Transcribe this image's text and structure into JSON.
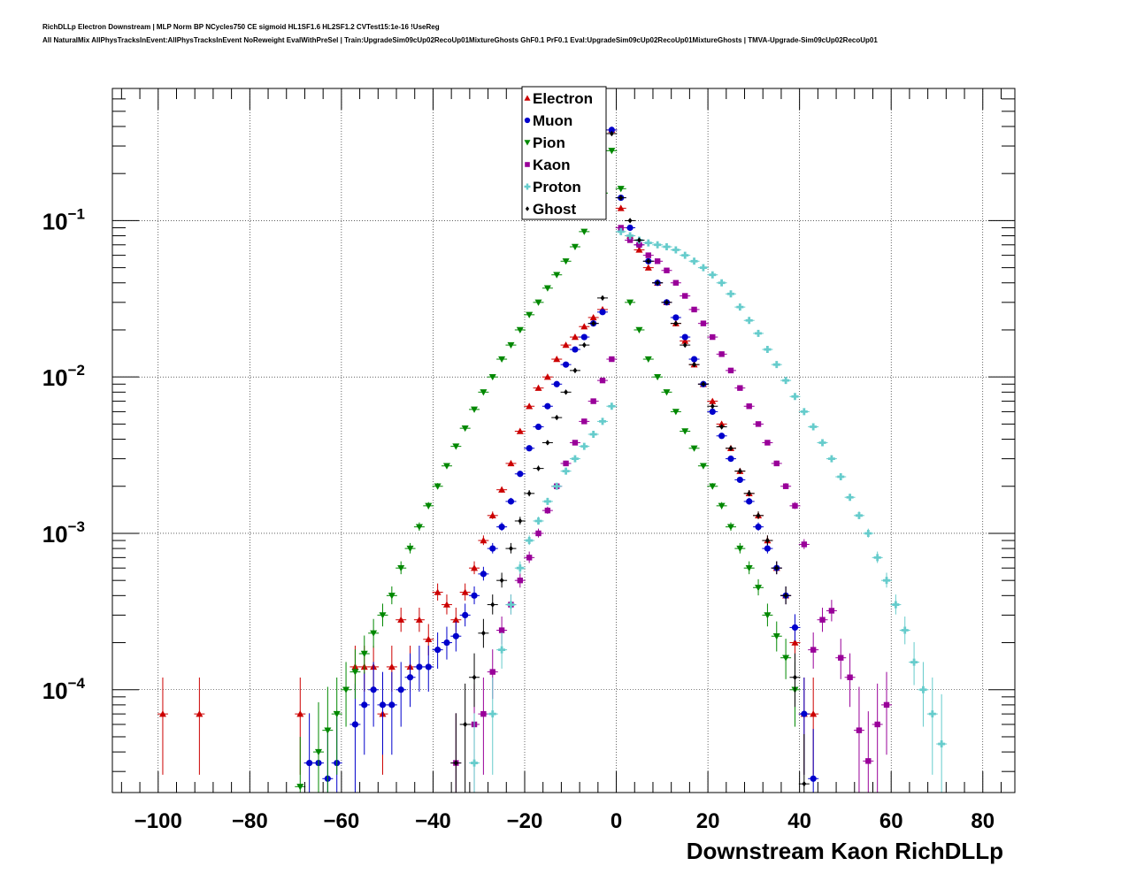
{
  "header": {
    "title_line1": "RichDLLp Electron Downstream | MLP Norm BP NCycles750 CE sigmoid HL1SF1.6 HL2SF1.2 CVTest15:1e-16 !UseReg",
    "title_line2": "All NaturalMix AllPhysTracksInEvent:AllPhysTracksInEvent NoReweight EvalWithPreSel | Train:UpgradeSim09cUp02RecoUp01MixtureGhosts GhF0.1 PrF0.1 Eval:UpgradeSim09cUp02RecoUp01MixtureGhosts | TMVA-Upgrade-Sim09cUp02RecoUp01"
  },
  "chart_data": {
    "type": "scatter",
    "xlabel": "Downstream Kaon RichDLLp",
    "x_ticks": [
      -100,
      -80,
      -60,
      -40,
      -20,
      0,
      20,
      40,
      60,
      80
    ],
    "x_tick_labels": [
      "−100",
      "−80",
      "−60",
      "−40",
      "−20",
      "0",
      "20",
      "40",
      "60",
      "80"
    ],
    "xlim": [
      -110,
      87
    ],
    "ylim": [
      2.2e-05,
      0.7
    ],
    "yscale": "log",
    "y_decades": [
      -4,
      -3,
      -2,
      -1
    ],
    "y_tick_base": "10",
    "grid": true,
    "legend_position": "top-center",
    "series": [
      {
        "name": "Electron",
        "color": "#cc0000",
        "marker": "triangle-up",
        "x": [
          -99,
          -91,
          -69,
          -57,
          -55,
          -53,
          -51,
          -49,
          -47,
          -45,
          -43,
          -41,
          -39,
          -37,
          -35,
          -33,
          -31,
          -29,
          -27,
          -25,
          -23,
          -21,
          -19,
          -17,
          -15,
          -13,
          -11,
          -9,
          -7,
          -5,
          -3,
          -1,
          1,
          3,
          5,
          7,
          9,
          11,
          13,
          15,
          17,
          19,
          21,
          23,
          25,
          27,
          29,
          31,
          33,
          35,
          37,
          39,
          41,
          43
        ],
        "y": [
          7e-05,
          7e-05,
          7e-05,
          0.00014,
          0.00014,
          0.00014,
          7e-05,
          0.00014,
          0.00028,
          0.00014,
          0.00028,
          0.00021,
          0.00042,
          0.00035,
          0.00028,
          0.00042,
          0.0006,
          0.0009,
          0.0013,
          0.0019,
          0.0028,
          0.0045,
          0.0065,
          0.0085,
          0.01,
          0.013,
          0.016,
          0.018,
          0.021,
          0.024,
          0.027,
          0.38,
          0.12,
          0.08,
          0.065,
          0.05,
          0.04,
          0.03,
          0.022,
          0.017,
          0.012,
          0.009,
          0.007,
          0.005,
          0.0035,
          0.0025,
          0.0018,
          0.0013,
          0.0009,
          0.0006,
          0.0004,
          0.0002,
          7e-05,
          7e-05
        ]
      },
      {
        "name": "Muon",
        "color": "#0000cc",
        "marker": "circle",
        "x": [
          -67,
          -65,
          -63,
          -61,
          -57,
          -55,
          -53,
          -51,
          -49,
          -47,
          -45,
          -43,
          -41,
          -39,
          -37,
          -35,
          -33,
          -31,
          -29,
          -27,
          -25,
          -23,
          -21,
          -19,
          -17,
          -15,
          -13,
          -11,
          -9,
          -7,
          -5,
          -3,
          -1,
          1,
          3,
          5,
          7,
          9,
          11,
          13,
          15,
          17,
          19,
          21,
          23,
          25,
          27,
          29,
          31,
          33,
          35,
          37,
          39,
          41,
          43
        ],
        "y": [
          3.4e-05,
          3.4e-05,
          2.7e-05,
          3.4e-05,
          6e-05,
          8e-05,
          0.0001,
          8e-05,
          8e-05,
          0.0001,
          0.00012,
          0.00014,
          0.00014,
          0.00018,
          0.0002,
          0.00022,
          0.0003,
          0.0004,
          0.00055,
          0.0008,
          0.0011,
          0.0016,
          0.0024,
          0.0035,
          0.0048,
          0.0065,
          0.009,
          0.012,
          0.015,
          0.018,
          0.022,
          0.026,
          0.38,
          0.14,
          0.09,
          0.07,
          0.055,
          0.04,
          0.03,
          0.024,
          0.018,
          0.013,
          0.009,
          0.006,
          0.0042,
          0.003,
          0.0022,
          0.0016,
          0.0011,
          0.0008,
          0.0006,
          0.0004,
          0.00025,
          7e-05,
          2.7e-05
        ]
      },
      {
        "name": "Pion",
        "color": "#008800",
        "marker": "triangle-down",
        "x": [
          -69,
          -65,
          -63,
          -61,
          -59,
          -57,
          -55,
          -53,
          -51,
          -49,
          -47,
          -45,
          -43,
          -41,
          -39,
          -37,
          -35,
          -33,
          -31,
          -29,
          -27,
          -25,
          -23,
          -21,
          -19,
          -17,
          -15,
          -13,
          -11,
          -9,
          -7,
          -5,
          -3,
          -1,
          1,
          3,
          5,
          7,
          9,
          11,
          13,
          15,
          17,
          19,
          21,
          23,
          25,
          27,
          29,
          31,
          33,
          35,
          37,
          39
        ],
        "y": [
          2.4e-05,
          4e-05,
          5.5e-05,
          7e-05,
          0.0001,
          0.00013,
          0.00017,
          0.00023,
          0.0003,
          0.0004,
          0.0006,
          0.0008,
          0.0011,
          0.0015,
          0.002,
          0.0027,
          0.0036,
          0.0047,
          0.0062,
          0.008,
          0.01,
          0.013,
          0.016,
          0.02,
          0.025,
          0.03,
          0.037,
          0.045,
          0.055,
          0.068,
          0.085,
          0.11,
          0.15,
          0.28,
          0.16,
          0.03,
          0.02,
          0.013,
          0.01,
          0.008,
          0.006,
          0.0045,
          0.0035,
          0.0027,
          0.002,
          0.0015,
          0.0011,
          0.0008,
          0.0006,
          0.00045,
          0.0003,
          0.00022,
          0.00016,
          0.0001
        ]
      },
      {
        "name": "Kaon",
        "color": "#990099",
        "marker": "square",
        "x": [
          -35,
          -31,
          -29,
          -27,
          -25,
          -23,
          -21,
          -19,
          -17,
          -15,
          -13,
          -11,
          -9,
          -7,
          -5,
          -3,
          -1,
          1,
          3,
          5,
          7,
          9,
          11,
          13,
          15,
          17,
          19,
          21,
          23,
          25,
          27,
          29,
          31,
          33,
          35,
          37,
          39,
          41,
          43,
          45,
          47,
          49,
          51,
          53,
          55,
          57,
          59
        ],
        "y": [
          3.4e-05,
          6e-05,
          7e-05,
          0.00013,
          0.00024,
          0.00035,
          0.0005,
          0.0007,
          0.001,
          0.0014,
          0.002,
          0.0028,
          0.0038,
          0.0052,
          0.007,
          0.0095,
          0.013,
          0.09,
          0.075,
          0.07,
          0.06,
          0.055,
          0.048,
          0.04,
          0.033,
          0.027,
          0.022,
          0.018,
          0.014,
          0.011,
          0.0085,
          0.0065,
          0.005,
          0.0038,
          0.0028,
          0.002,
          0.0015,
          0.00085,
          0.00018,
          0.00028,
          0.00032,
          0.00016,
          0.00012,
          5.5e-05,
          3.5e-05,
          6e-05,
          8e-05
        ]
      },
      {
        "name": "Proton",
        "color": "#66cccc",
        "marker": "cross",
        "x": [
          -31,
          -27,
          -25,
          -23,
          -21,
          -19,
          -17,
          -15,
          -13,
          -11,
          -9,
          -7,
          -5,
          -3,
          -1,
          1,
          3,
          5,
          7,
          9,
          11,
          13,
          15,
          17,
          19,
          21,
          23,
          25,
          27,
          29,
          31,
          33,
          35,
          37,
          39,
          41,
          43,
          45,
          47,
          49,
          51,
          53,
          55,
          57,
          59,
          61,
          63,
          65,
          67,
          69,
          71
        ],
        "y": [
          3.4e-05,
          7e-05,
          0.00018,
          0.00035,
          0.0006,
          0.0009,
          0.0012,
          0.0016,
          0.002,
          0.0025,
          0.003,
          0.0036,
          0.0043,
          0.0052,
          0.0065,
          0.085,
          0.08,
          0.075,
          0.072,
          0.07,
          0.068,
          0.065,
          0.06,
          0.055,
          0.05,
          0.045,
          0.04,
          0.034,
          0.028,
          0.023,
          0.019,
          0.015,
          0.012,
          0.0095,
          0.0075,
          0.006,
          0.0048,
          0.0038,
          0.003,
          0.0023,
          0.0017,
          0.0013,
          0.001,
          0.0007,
          0.0005,
          0.00035,
          0.00024,
          0.00015,
          0.0001,
          7e-05,
          4.5e-05
        ]
      },
      {
        "name": "Ghost",
        "color": "#000000",
        "marker": "diamond",
        "x": [
          -35,
          -33,
          -31,
          -29,
          -27,
          -25,
          -23,
          -21,
          -19,
          -17,
          -15,
          -13,
          -11,
          -9,
          -7,
          -5,
          -3,
          -1,
          1,
          3,
          5,
          7,
          9,
          11,
          13,
          15,
          17,
          19,
          21,
          23,
          25,
          27,
          29,
          31,
          33,
          35,
          37,
          39,
          41
        ],
        "y": [
          3.4e-05,
          6e-05,
          0.00012,
          0.00023,
          0.00035,
          0.0005,
          0.0008,
          0.0012,
          0.0018,
          0.0026,
          0.0038,
          0.0055,
          0.008,
          0.011,
          0.016,
          0.022,
          0.032,
          0.36,
          0.14,
          0.1,
          0.075,
          0.055,
          0.04,
          0.03,
          0.022,
          0.016,
          0.012,
          0.009,
          0.0065,
          0.0048,
          0.0035,
          0.0025,
          0.0018,
          0.0013,
          0.0009,
          0.0006,
          0.0004,
          0.00012,
          2.5e-05
        ]
      }
    ]
  }
}
